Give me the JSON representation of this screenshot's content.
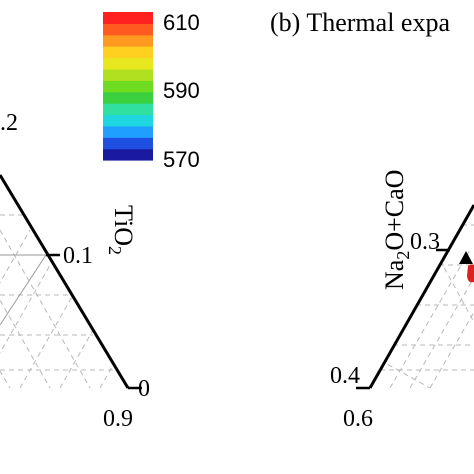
{
  "chart_data": [
    {
      "type": "ternary",
      "colorbar": {
        "ticks": [
          "610",
          "590",
          "570"
        ],
        "range": [
          570,
          610
        ],
        "colors": [
          "#1a1aa0",
          "#1f4fe0",
          "#1f9fff",
          "#20d6e0",
          "#30e0a0",
          "#3ad040",
          "#6fdc20",
          "#b0e020",
          "#e8e820",
          "#ffd020",
          "#ff9a20",
          "#ff5a20",
          "#ff2020"
        ]
      },
      "left_fragment_label": ".2",
      "axis_label": {
        "main": "TiO",
        "sub": "2"
      },
      "tick_labels": [
        "0.1",
        "0",
        "0.9"
      ]
    },
    {
      "type": "ternary",
      "title": "(b) Thermal expa",
      "axis_label": {
        "main": "Na",
        "sub1": "2",
        "mid": "O+CaO"
      },
      "tick_labels": [
        "0.3",
        "0.4",
        "0.6"
      ],
      "markers": [
        {
          "shape": "triangle",
          "color": "#000000"
        },
        {
          "shape": "blob",
          "color": "#e02020"
        }
      ]
    }
  ]
}
